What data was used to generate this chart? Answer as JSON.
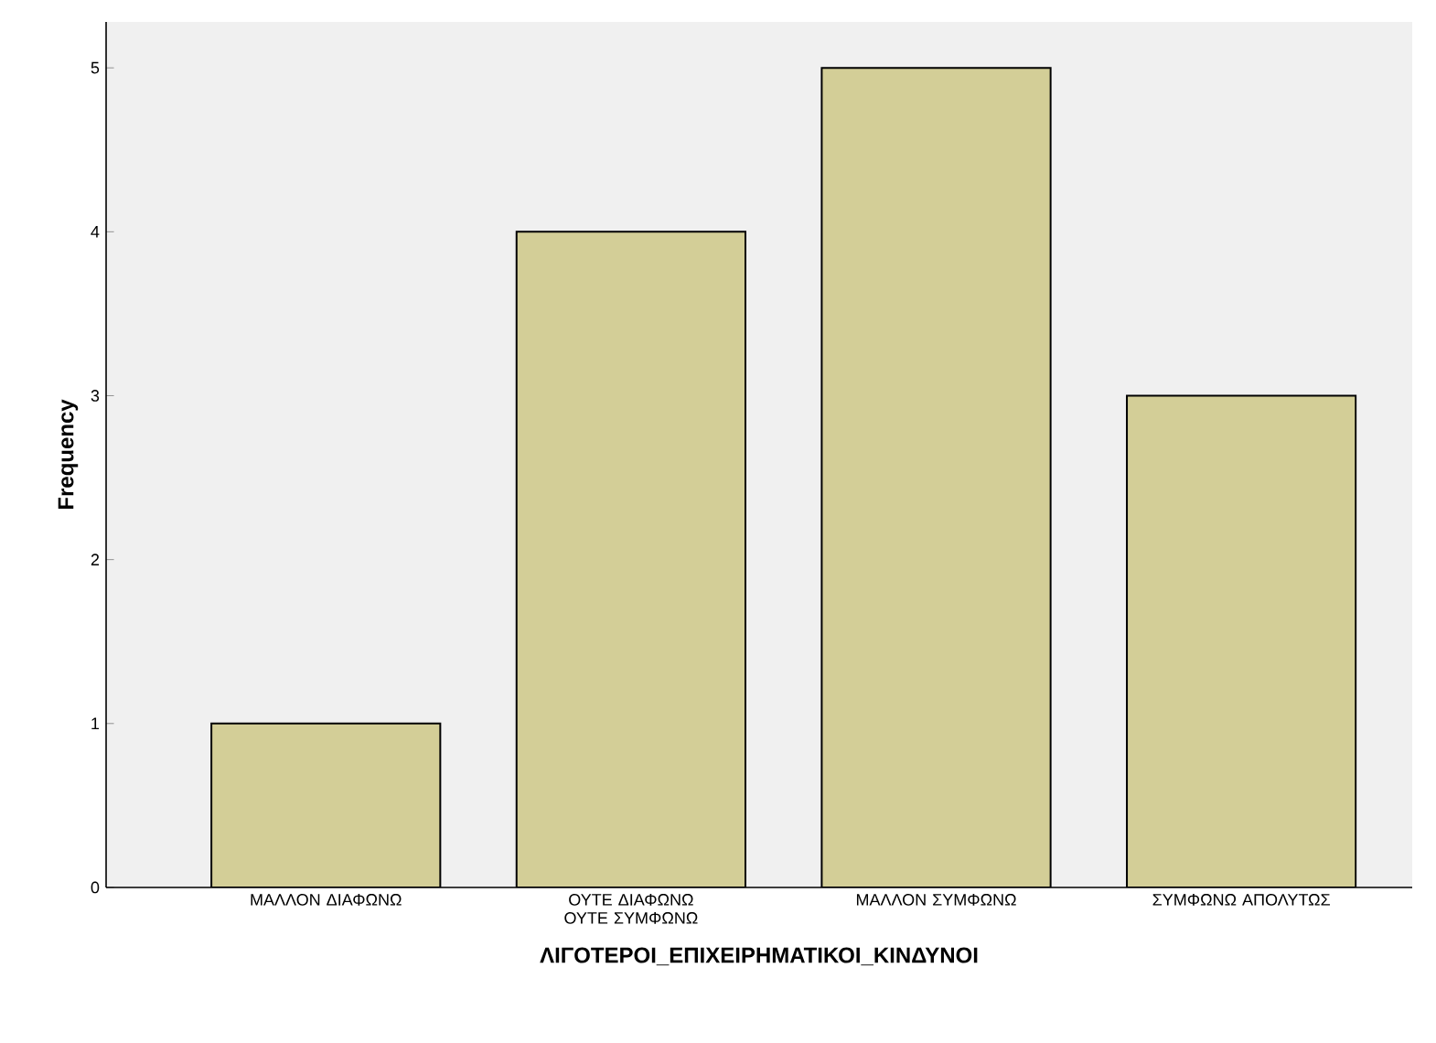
{
  "chart_data": {
    "type": "bar",
    "xlabel": "ΛΙΓΟΤΕΡΟΙ_ΕΠΙΧΕΙΡΗΜΑΤΙΚΟΙ_ΚΙΝΔΥΝΟΙ",
    "ylabel": "Frequency",
    "categories": [
      "ΜΑΛΛΟΝ ΔΙΑΦΩΝΩ",
      "ΟΥΤΕ ΔΙΑΦΩΝΩ ΟΥΤΕ ΣΥΜΦΩΝΩ",
      "ΜΑΛΛΟΝ ΣΥΜΦΩΝΩ",
      "ΣΥΜΦΩΝΩ ΑΠΟΛΥΤΩΣ"
    ],
    "values": [
      1,
      4,
      5,
      3
    ],
    "color": "#d3ce97",
    "ylim": [
      0,
      5.28
    ],
    "yticks": [
      0,
      1,
      2,
      3,
      4,
      5
    ]
  }
}
